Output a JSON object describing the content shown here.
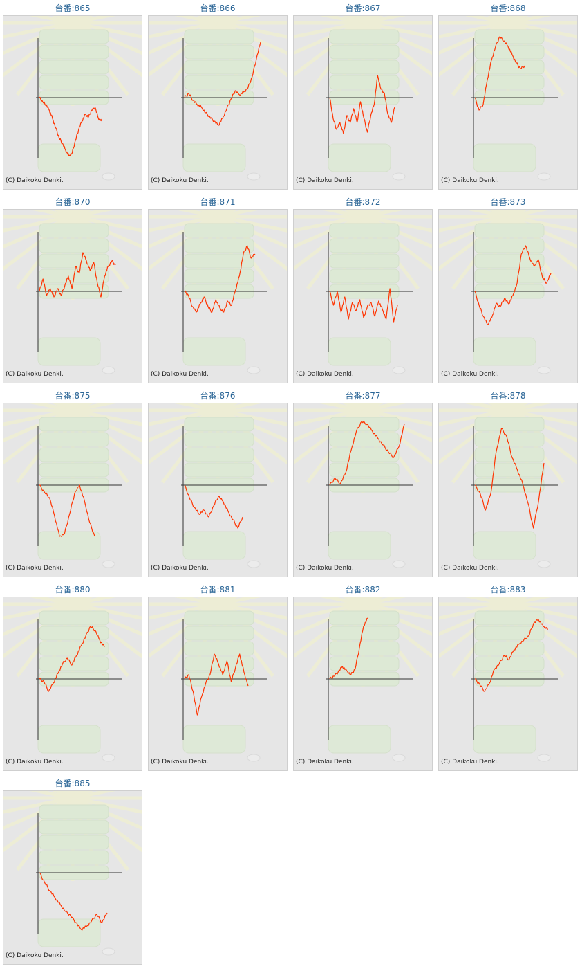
{
  "title_prefix": "台番:",
  "copyright": "(C) Daikoku Denki.",
  "colors": {
    "line": "#ff3300",
    "axis": "#333333",
    "panel": "#e6e6e6",
    "title": "#2a6596"
  },
  "chart_data": [
    {
      "type": "line",
      "title": "台番:865",
      "values": [
        0,
        -6,
        -10,
        -18,
        -30,
        -44,
        -58,
        -66,
        -76,
        -84,
        -80,
        -62,
        -46,
        -34,
        -24,
        -28,
        -18,
        -14,
        -30,
        -34
      ]
    },
    {
      "type": "line",
      "title": "台番:866",
      "values": [
        0,
        6,
        -4,
        -10,
        -14,
        -22,
        -28,
        -34,
        -40,
        -30,
        -16,
        -2,
        10,
        4,
        8,
        14,
        30,
        56,
        80
      ]
    },
    {
      "type": "line",
      "title": "台番:867",
      "values": [
        0,
        -30,
        -46,
        -36,
        -52,
        -26,
        -36,
        -16,
        -36,
        -6,
        -30,
        -50,
        -26,
        -10,
        32,
        12,
        6,
        -24,
        -36,
        -14
      ]
    },
    {
      "type": "line",
      "title": "台番:868",
      "values": [
        0,
        -18,
        -10,
        26,
        54,
        74,
        88,
        82,
        74,
        62,
        50,
        42,
        46
      ]
    },
    {
      "type": "line",
      "title": "台番:870",
      "values": [
        0,
        18,
        -6,
        4,
        -8,
        4,
        -6,
        8,
        22,
        4,
        36,
        26,
        56,
        44,
        30,
        42,
        12,
        -8,
        22,
        36,
        44,
        38
      ]
    },
    {
      "type": "line",
      "title": "台番:871",
      "values": [
        0,
        -6,
        -22,
        -30,
        -18,
        -8,
        -22,
        -30,
        -12,
        -24,
        -30,
        -14,
        -20,
        2,
        22,
        54,
        66,
        48,
        54
      ]
    },
    {
      "type": "line",
      "title": "台番:872",
      "values": [
        0,
        -20,
        0,
        -30,
        -8,
        -40,
        -16,
        -28,
        -12,
        -38,
        -22,
        -16,
        -36,
        -14,
        -26,
        -40,
        4,
        -44,
        -20
      ]
    },
    {
      "type": "line",
      "title": "台番:873",
      "values": [
        0,
        -20,
        -36,
        -48,
        -38,
        -18,
        -22,
        -10,
        -18,
        -6,
        12,
        54,
        66,
        48,
        36,
        46,
        20,
        12,
        26
      ]
    },
    {
      "type": "line",
      "title": "台番:875",
      "values": [
        0,
        -10,
        -18,
        -44,
        -74,
        -70,
        -42,
        -12,
        0,
        -24,
        -54,
        -74
      ]
    },
    {
      "type": "line",
      "title": "台番:876",
      "values": [
        0,
        -18,
        -32,
        -42,
        -36,
        -46,
        -30,
        -16,
        -24,
        -38,
        -50,
        -62,
        -46
      ]
    },
    {
      "type": "line",
      "title": "台番:877",
      "values": [
        0,
        10,
        2,
        18,
        50,
        78,
        92,
        88,
        78,
        68,
        58,
        48,
        40,
        56,
        88
      ]
    },
    {
      "type": "line",
      "title": "台番:878",
      "values": [
        0,
        -12,
        -36,
        -12,
        48,
        82,
        70,
        40,
        22,
        2,
        -26,
        -62,
        -22,
        32
      ]
    },
    {
      "type": "line",
      "title": "台番:880",
      "values": [
        0,
        -4,
        -18,
        -6,
        8,
        22,
        30,
        20,
        34,
        48,
        62,
        76,
        70,
        56,
        46
      ]
    },
    {
      "type": "line",
      "title": "台番:881",
      "values": [
        0,
        6,
        -18,
        -52,
        -26,
        -6,
        6,
        36,
        22,
        6,
        26,
        -4,
        16,
        36,
        10,
        -10
      ]
    },
    {
      "type": "line",
      "title": "台番:882",
      "values": [
        0,
        4,
        10,
        18,
        12,
        6,
        14,
        44,
        76,
        88
      ]
    },
    {
      "type": "line",
      "title": "台番:883",
      "values": [
        0,
        -8,
        -18,
        -6,
        14,
        22,
        34,
        28,
        42,
        50,
        56,
        62,
        80,
        86,
        76,
        72
      ]
    },
    {
      "type": "line",
      "title": "台番:885",
      "values": [
        0,
        -14,
        -26,
        -36,
        -46,
        -56,
        -62,
        -72,
        -82,
        -78,
        -70,
        -60,
        -72,
        -58
      ]
    }
  ]
}
